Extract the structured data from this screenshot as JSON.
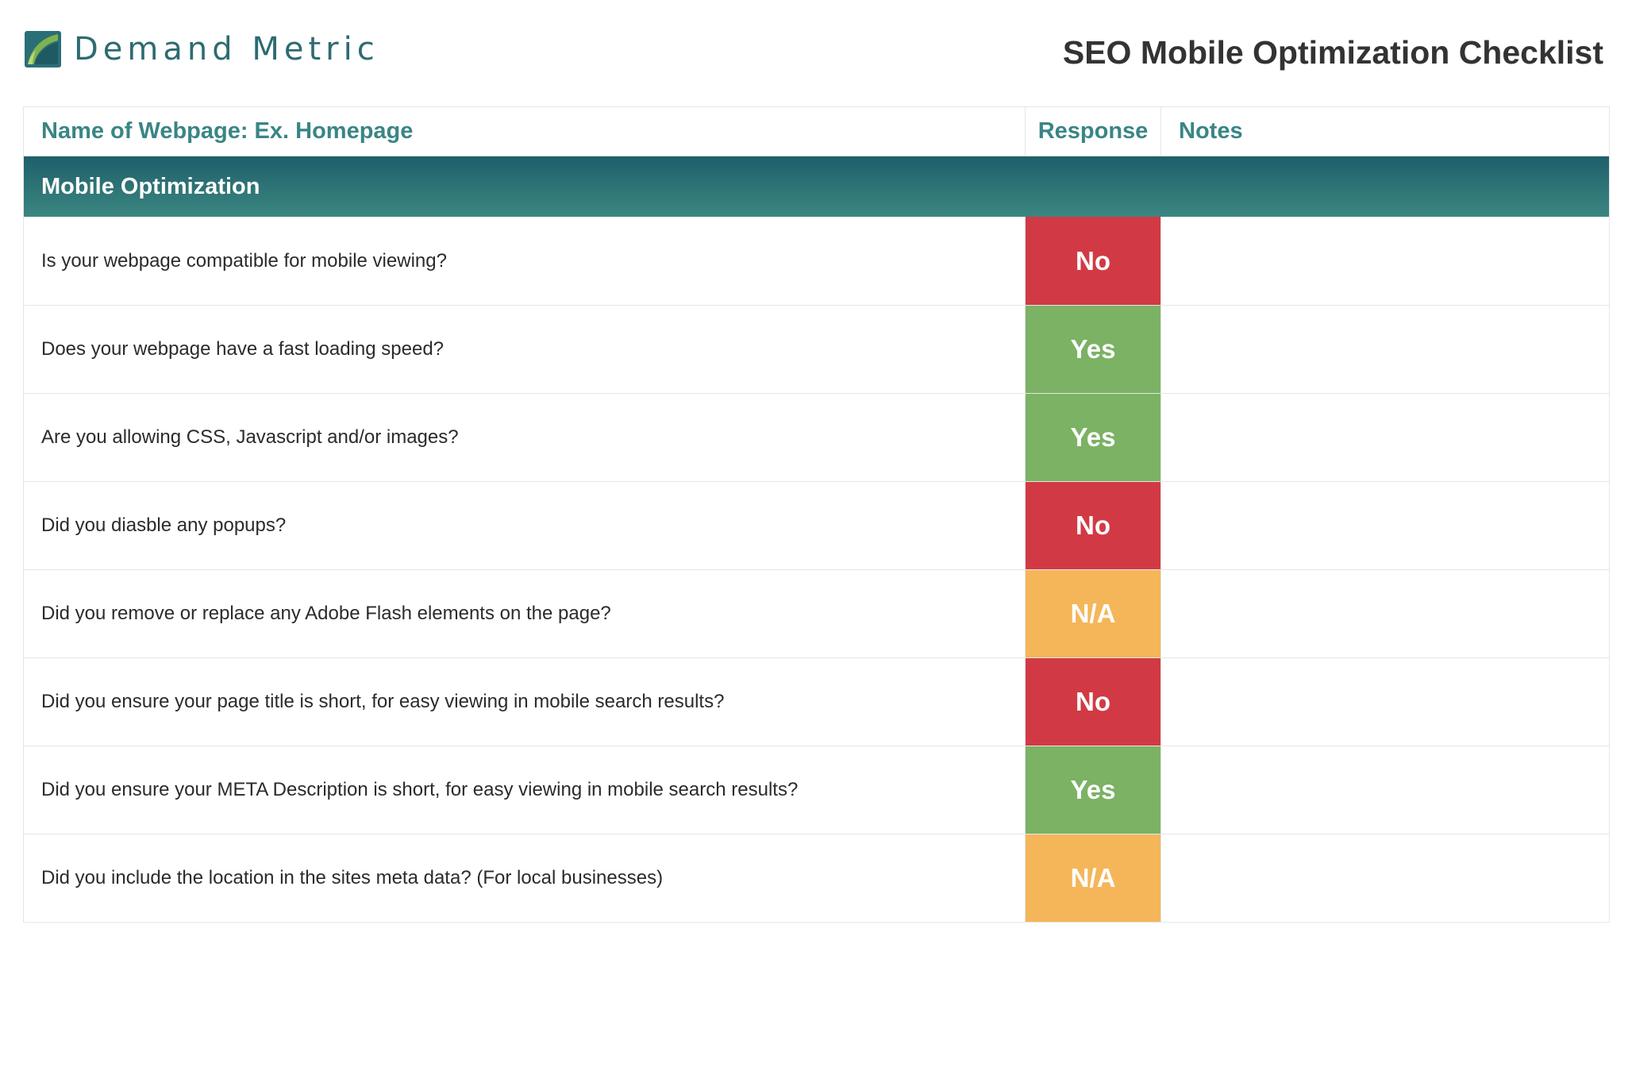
{
  "header": {
    "logo_text": "Demand Metric",
    "title": "SEO Mobile Optimization Checklist"
  },
  "table": {
    "columns": {
      "question": "Name of Webpage: Ex. Homepage",
      "response": "Response",
      "notes": "Notes"
    },
    "section_title": "Mobile Optimization",
    "rows": [
      {
        "question": "Is your webpage compatible for mobile viewing?",
        "response": "No",
        "notes": ""
      },
      {
        "question": "Does your webpage have a fast loading speed?",
        "response": "Yes",
        "notes": ""
      },
      {
        "question": "Are you allowing CSS, Javascript and/or images?",
        "response": "Yes",
        "notes": ""
      },
      {
        "question": "Did you diasble any popups?",
        "response": "No",
        "notes": ""
      },
      {
        "question": "Did you remove or replace any Adobe Flash elements on the page?",
        "response": "N/A",
        "notes": ""
      },
      {
        "question": "Did you ensure your page title is short, for easy viewing in mobile search results?",
        "response": "No",
        "notes": ""
      },
      {
        "question": "Did you ensure your META Description is short, for easy viewing in mobile search results?",
        "response": "Yes",
        "notes": ""
      },
      {
        "question": "Did you include the location in the sites meta data? (For local businesses)",
        "response": "N/A",
        "notes": ""
      }
    ]
  },
  "colors": {
    "brand_teal": "#2e6b72",
    "header_text_teal": "#3a8585",
    "response_no": "#d13a44",
    "response_yes": "#7bb264",
    "response_na": "#f5b65a"
  }
}
